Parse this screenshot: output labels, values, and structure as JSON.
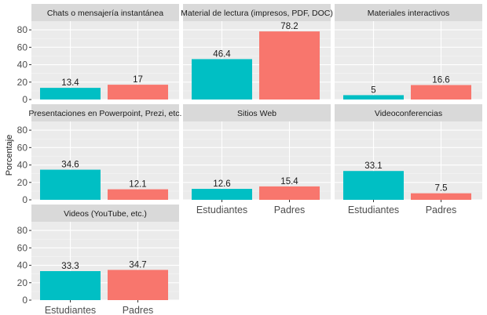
{
  "chart_data": {
    "type": "bar",
    "ylabel": "Porcentaje",
    "ylim": [
      0,
      90
    ],
    "yticks": [
      0,
      20,
      40,
      60,
      80
    ],
    "categories": [
      "Estudiantes",
      "Padres"
    ],
    "colors": {
      "Estudiantes": "#00bfc4",
      "Padres": "#f8766d"
    },
    "grid": true,
    "panels": [
      {
        "title": "Chats o mensajería instantánea",
        "values": [
          13.4,
          17
        ]
      },
      {
        "title": "Material de lectura (impresos, PDF, DOC)",
        "values": [
          46.4,
          78.2
        ]
      },
      {
        "title": "Materiales interactivos",
        "values": [
          5,
          16.6
        ]
      },
      {
        "title": "Presentaciones en Powerpoint, Prezi, etc.",
        "values": [
          34.6,
          12.1
        ]
      },
      {
        "title": "Sitios Web",
        "values": [
          12.6,
          15.4
        ]
      },
      {
        "title": "Videoconferencias",
        "values": [
          33.1,
          7.5
        ]
      },
      {
        "title": "Videos (YouTube, etc.)",
        "values": [
          33.3,
          34.7
        ]
      }
    ]
  }
}
